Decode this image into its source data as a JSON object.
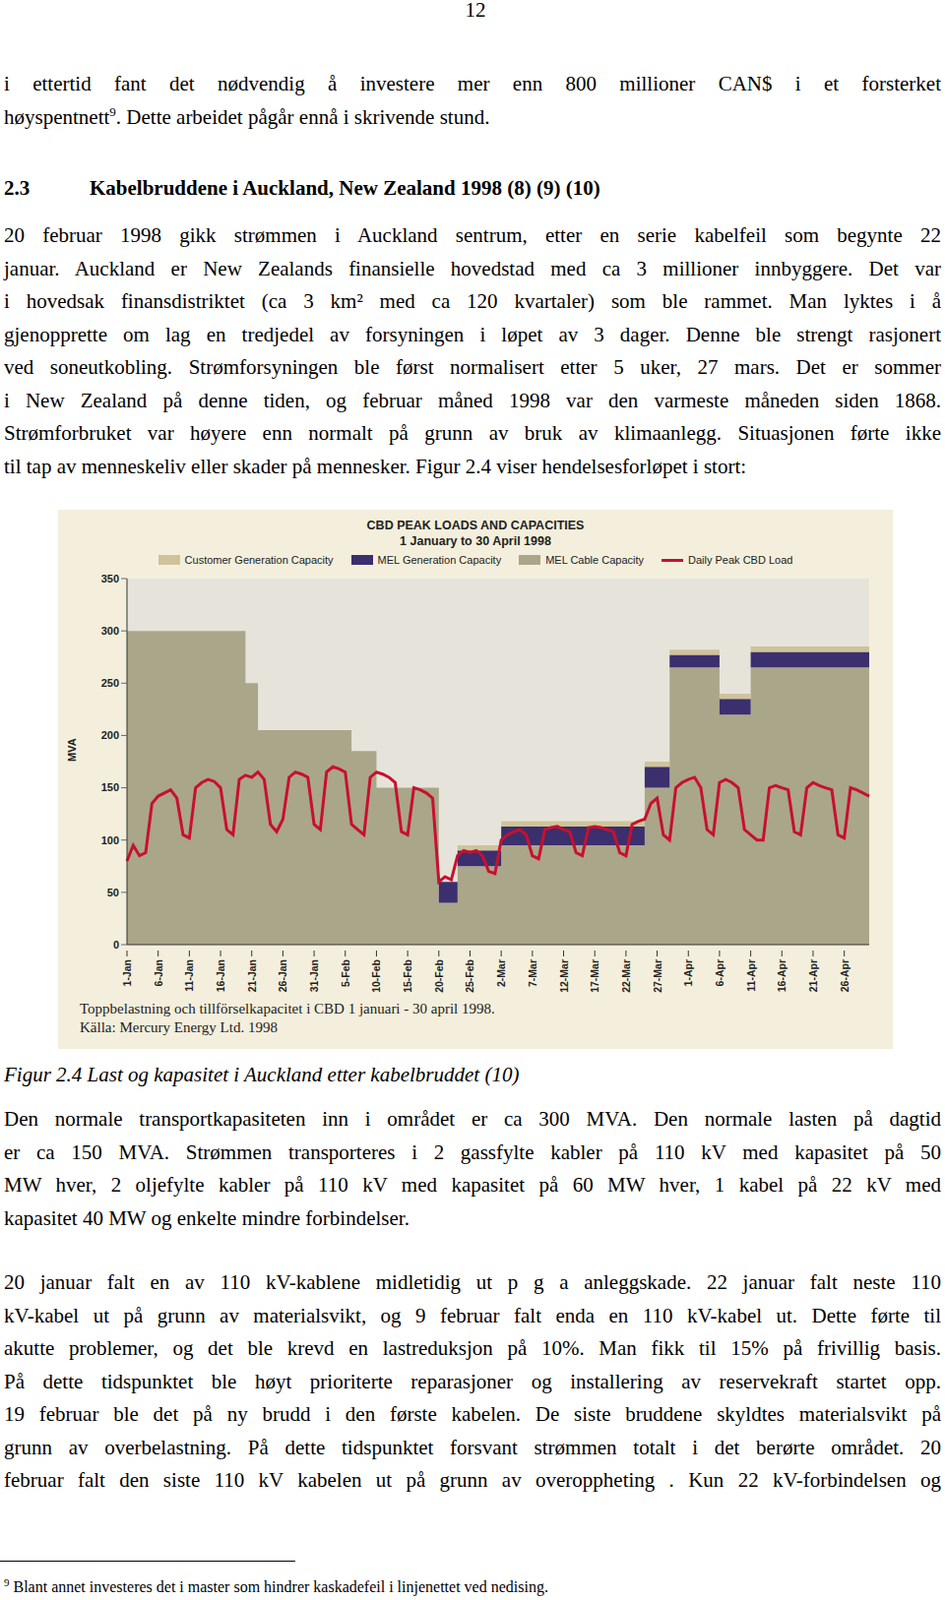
{
  "document": {
    "page_number": "12",
    "paragraph_1": [
      [
        "i ettertid fant det nødvendig å investere mer enn 800 millioner CAN$ i et forsterket"
      ],
      [
        "høyspentnett",
        {
          "sup": "9"
        },
        ". Dette arbeidet pågår ennå i skrivende stund."
      ]
    ],
    "heading": {
      "number": "2.3",
      "title": "Kabelbruddene i Auckland, New Zealand 1998 (8) (9) (10)"
    },
    "paragraph_2": [
      [
        "20 februar 1998 gikk strømmen i Auckland sentrum, etter en serie kabelfeil som begynte 22"
      ],
      [
        "januar. Auckland er New Zealands finansielle hovedstad med ca 3 millioner innbyggere. Det var"
      ],
      [
        "i hovedsak finansdistriktet (ca 3 km² med ca 120 kvartaler) som ble rammet. Man lyktes i å"
      ],
      [
        "gjenopprette om lag en tredjedel av forsyningen i løpet av 3 dager. Denne ble strengt rasjonert"
      ],
      [
        "ved soneutkobling. Strømforsyningen ble først normalisert etter 5 uker, 27 mars. Det er sommer"
      ],
      [
        "i New Zealand på denne tiden, og februar måned 1998 var den varmeste måneden siden 1868."
      ],
      [
        "Strømforbruket var høyere enn normalt på grunn av bruk av klimaanlegg. Situasjonen førte ikke"
      ],
      [
        "til tap av menneskeliv eller skader på mennesker. Figur 2.4 viser hendelsesforløpet i stort:"
      ]
    ],
    "caption": "Figur 2.4 Last og kapasitet i Auckland etter kabelbruddet (10)",
    "paragraph_3": [
      [
        "Den normale transportkapasiteten inn i området er ca 300 MVA. Den normale lasten på dagtid"
      ],
      [
        "er ca 150 MVA. Strømmen transporteres i 2 gassfylte kabler på 110 kV med kapasitet på 50"
      ],
      [
        "MW hver, 2 oljefylte kabler på 110 kV med kapasitet på 60 MW hver, 1 kabel på 22 kV med"
      ],
      [
        "kapasitet 40 MW og enkelte mindre forbindelser."
      ]
    ],
    "paragraph_4": [
      [
        "20 januar falt en av 110 kV-kablene midletidig ut p g a anleggskade. 22 januar falt neste 110"
      ],
      [
        "kV-kabel ut på grunn av materialsvikt, og 9 februar falt enda en 110 kV-kabel ut. Dette førte til"
      ],
      [
        "akutte problemer, og det ble krevd en lastreduksjon på 10%. Man fikk til 15% på frivillig basis."
      ],
      [
        "På dette tidspunktet ble høyt prioriterte reparasjoner og installering av reservekraft startet opp."
      ],
      [
        "19 februar ble det på ny brudd i den første kabelen. De siste bruddene skyldtes materialsvikt på"
      ],
      [
        "grunn av overbelastning. På dette tidspunktet forsvant strømmen totalt i det berørte området. 20"
      ],
      [
        "februar falt den siste 110 kV kabelen ut på grunn av overoppheting . Kun 22 kV-forbindelsen og"
      ]
    ],
    "footnote": {
      "mark": "9",
      "text": "Blant annet investeres det i master som hindrer kaskadefeil i linjenettet ved nedising."
    }
  },
  "chart_data": {
    "type": "area",
    "title": "CBD PEAK LOADS AND CAPACITIES",
    "subtitle": "1 January to 30 April 1998",
    "y_label": "MVA",
    "annotations": [
      "Toppbelastning och tillförselkapacitet i CBD 1 januari - 30 april 1998.",
      "Källa: Mercury Energy Ltd. 1998"
    ],
    "stacked": true,
    "grid": false,
    "ylim": [
      0,
      350
    ],
    "yticks": [
      0,
      50,
      100,
      150,
      200,
      250,
      300,
      350
    ],
    "categories": [
      "1-Jan",
      null,
      null,
      null,
      null,
      "6-Jan",
      null,
      null,
      null,
      null,
      "11-Jan",
      null,
      null,
      null,
      null,
      "16-Jan",
      null,
      null,
      null,
      null,
      "21-Jan",
      null,
      null,
      null,
      null,
      "26-Jan",
      null,
      null,
      null,
      null,
      "31-Jan",
      null,
      null,
      null,
      null,
      "5-Feb",
      null,
      null,
      null,
      null,
      "10-Feb",
      null,
      null,
      null,
      null,
      "15-Feb",
      null,
      null,
      null,
      null,
      "20-Feb",
      null,
      null,
      null,
      null,
      "25-Feb",
      null,
      null,
      null,
      null,
      "2-Mar",
      null,
      null,
      null,
      null,
      "7-Mar",
      null,
      null,
      null,
      null,
      "12-Mar",
      null,
      null,
      null,
      null,
      "17-Mar",
      null,
      null,
      null,
      null,
      "22-Mar",
      null,
      null,
      null,
      null,
      "27-Mar",
      null,
      null,
      null,
      null,
      "1-Apr",
      null,
      null,
      null,
      null,
      "6-Apr",
      null,
      null,
      null,
      null,
      "11-Apr",
      null,
      null,
      null,
      null,
      "16-Apr",
      null,
      null,
      null,
      null,
      "21-Apr",
      null,
      null,
      null,
      null,
      "26-Apr",
      null,
      null,
      null,
      null
    ],
    "series": [
      {
        "name": "Customer Generation Capacity",
        "type": "area",
        "line_style": "step",
        "color": "#cfc39a",
        "values": [
          0,
          0,
          0,
          0,
          0,
          0,
          0,
          0,
          0,
          0,
          0,
          0,
          0,
          0,
          0,
          0,
          0,
          0,
          0,
          0,
          0,
          0,
          0,
          0,
          0,
          0,
          0,
          0,
          0,
          0,
          0,
          0,
          0,
          0,
          0,
          0,
          0,
          0,
          0,
          0,
          0,
          0,
          0,
          0,
          0,
          0,
          0,
          0,
          0,
          0,
          0,
          0,
          0,
          5,
          5,
          5,
          5,
          5,
          5,
          5,
          5,
          5,
          5,
          5,
          5,
          5,
          5,
          5,
          5,
          5,
          5,
          5,
          5,
          5,
          5,
          5,
          5,
          5,
          5,
          5,
          5,
          5,
          5,
          5,
          5,
          5,
          5,
          5,
          5,
          5,
          5,
          5,
          5,
          5,
          5,
          5,
          5,
          5,
          5,
          5,
          5,
          5,
          5,
          5,
          5,
          5,
          5,
          5,
          5,
          5,
          5,
          5,
          5,
          5,
          5,
          5,
          5,
          5,
          5,
          5
        ]
      },
      {
        "name": "MEL Generation Capacity",
        "type": "area",
        "line_style": "step",
        "color": "#3b2f6e",
        "values": [
          0,
          0,
          0,
          0,
          0,
          0,
          0,
          0,
          0,
          0,
          0,
          0,
          0,
          0,
          0,
          0,
          0,
          0,
          0,
          0,
          0,
          0,
          0,
          0,
          0,
          0,
          0,
          0,
          0,
          0,
          0,
          0,
          0,
          0,
          0,
          0,
          0,
          0,
          0,
          0,
          0,
          0,
          0,
          0,
          0,
          0,
          0,
          0,
          0,
          0,
          20,
          20,
          20,
          15,
          15,
          15,
          15,
          15,
          15,
          15,
          18,
          18,
          18,
          18,
          18,
          18,
          18,
          18,
          18,
          18,
          18,
          18,
          18,
          18,
          18,
          18,
          18,
          18,
          18,
          18,
          18,
          18,
          18,
          20,
          20,
          20,
          20,
          12,
          12,
          12,
          12,
          12,
          12,
          12,
          12,
          15,
          15,
          15,
          15,
          15,
          15,
          15,
          15,
          15,
          15,
          15,
          15,
          15,
          15,
          15,
          15,
          15,
          15,
          15,
          15,
          15,
          15,
          15,
          15,
          15
        ]
      },
      {
        "name": "MEL Cable Capacity",
        "type": "area",
        "line_style": "step",
        "color": "#aaa68a",
        "values": [
          300,
          300,
          300,
          300,
          300,
          300,
          300,
          300,
          300,
          300,
          300,
          300,
          300,
          300,
          300,
          300,
          300,
          300,
          300,
          250,
          250,
          205,
          205,
          205,
          205,
          205,
          205,
          205,
          205,
          205,
          205,
          205,
          205,
          205,
          205,
          205,
          185,
          185,
          185,
          185,
          150,
          150,
          150,
          150,
          150,
          150,
          150,
          150,
          150,
          150,
          40,
          40,
          40,
          75,
          75,
          75,
          75,
          75,
          75,
          75,
          95,
          95,
          95,
          95,
          95,
          95,
          95,
          95,
          95,
          95,
          95,
          95,
          95,
          95,
          95,
          95,
          95,
          95,
          95,
          95,
          95,
          95,
          95,
          150,
          150,
          150,
          150,
          265,
          265,
          265,
          265,
          265,
          265,
          265,
          265,
          220,
          220,
          220,
          220,
          220,
          265,
          265,
          265,
          265,
          265,
          265,
          265,
          265,
          265,
          265,
          265,
          265,
          265,
          265,
          265,
          265,
          265,
          265,
          265,
          265
        ]
      },
      {
        "name": "Daily Peak CBD Load",
        "type": "line",
        "color": "#c8102e",
        "values": [
          80,
          95,
          85,
          88,
          135,
          142,
          145,
          148,
          140,
          105,
          102,
          150,
          155,
          158,
          156,
          150,
          110,
          105,
          158,
          162,
          160,
          165,
          158,
          115,
          108,
          120,
          160,
          165,
          163,
          160,
          115,
          110,
          165,
          170,
          168,
          165,
          115,
          110,
          105,
          160,
          165,
          163,
          160,
          155,
          108,
          105,
          150,
          148,
          145,
          140,
          60,
          65,
          62,
          85,
          90,
          88,
          90,
          85,
          70,
          68,
          100,
          105,
          108,
          110,
          105,
          85,
          82,
          110,
          112,
          113,
          110,
          108,
          88,
          85,
          112,
          113,
          112,
          110,
          108,
          88,
          85,
          115,
          118,
          120,
          135,
          140,
          105,
          100,
          150,
          155,
          158,
          160,
          150,
          110,
          105,
          155,
          158,
          155,
          150,
          110,
          105,
          100,
          100,
          150,
          152,
          150,
          148,
          108,
          105,
          150,
          155,
          152,
          150,
          148,
          105,
          102,
          150,
          148,
          145,
          142
        ]
      }
    ]
  }
}
